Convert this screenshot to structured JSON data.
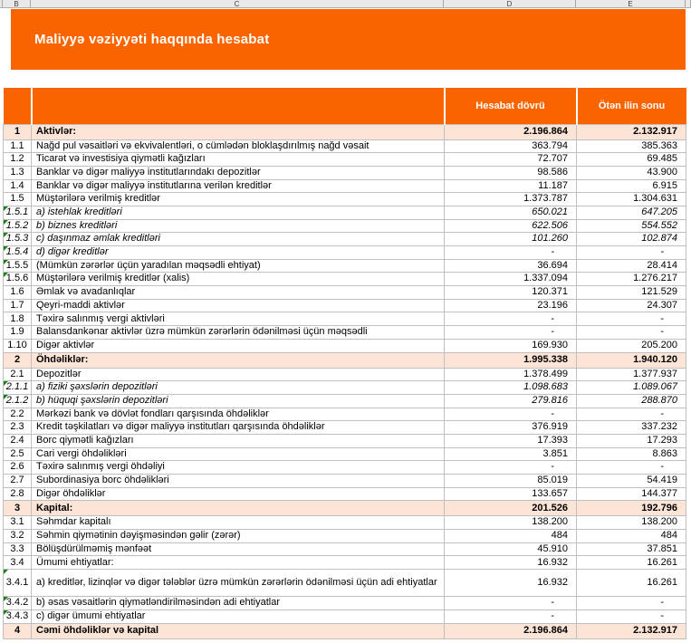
{
  "sheet": {
    "column_letters": [
      "B",
      "C",
      "D",
      "E"
    ]
  },
  "banner": {
    "title": "Maliyyə vəziyyəti haqqında hesabat"
  },
  "colors": {
    "accent_orange": "#fa6400",
    "section_row_bg": "#fce4d6",
    "gridline": "#bfbfbf",
    "error_indicator_green": "#1a801a"
  },
  "table": {
    "header": {
      "col_current": "Hesabat dövrü",
      "col_previous": "Ötən ilin sonu"
    },
    "rows": [
      {
        "num": "1",
        "label": "Aktivlər:",
        "v1": "2.196.864",
        "v2": "2.132.917",
        "type": "section"
      },
      {
        "num": "1.1",
        "label": "Nağd pul vəsaitləri və ekvivalentləri, o cümlədən bloklaşdırılmış nağd vəsait",
        "v1": "363.794",
        "v2": "385.363"
      },
      {
        "num": "1.2",
        "label": "Ticarət və investisiya qiymətli kağızları",
        "v1": "72.707",
        "v2": "69.485"
      },
      {
        "num": "1.3",
        "label": "Banklar və digər maliyyə institutlarındakı depozitlər",
        "v1": "98.586",
        "v2": "43.900"
      },
      {
        "num": "1.4",
        "label": "Banklar və digər maliyyə institutlarına verilən kreditlər",
        "v1": "11.187",
        "v2": "6.915"
      },
      {
        "num": "1.5",
        "label": "Müştərilərə verilmiş kreditlər",
        "v1": "1.373.787",
        "v2": "1.304.631"
      },
      {
        "num": "1.5.1",
        "label": "a) istehlak kreditləri",
        "v1": "650.021",
        "v2": "647.205",
        "italic": true,
        "marker": true
      },
      {
        "num": "1.5.2",
        "label": "b) biznes kreditləri",
        "v1": "622.506",
        "v2": "554.552",
        "italic": true,
        "marker": true
      },
      {
        "num": "1.5.3",
        "label": "c) daşınmaz əmlak kreditləri",
        "v1": "101.260",
        "v2": "102.874",
        "italic": true,
        "marker": true
      },
      {
        "num": "1.5.4",
        "label": "d) digər kreditlər",
        "v1": "-",
        "v2": "-",
        "italic": true,
        "marker": true
      },
      {
        "num": "1.5.5",
        "label": "(Mümkün zərərlər üçün yaradılan məqsədli ehtiyat)",
        "v1": "36.694",
        "v2": "28.414",
        "marker": true
      },
      {
        "num": "1.5.6",
        "label": "Müştərilərə verilmiş kreditlər (xalis)",
        "v1": "1.337.094",
        "v2": "1.276.217",
        "marker": true
      },
      {
        "num": "1.6",
        "label": "Əmlak və avadanlıqlar",
        "v1": "120.371",
        "v2": "121.529"
      },
      {
        "num": "1.7",
        "label": "Qeyri-maddi aktivlər",
        "v1": "23.196",
        "v2": "24.307"
      },
      {
        "num": "1.8",
        "label": "Təxirə salınmış vergi aktivləri",
        "v1": "-",
        "v2": "-"
      },
      {
        "num": "1.9",
        "label": "Balansdankənar aktivlər üzrə mümkün zərərlərin ödənilməsi üçün məqsədli",
        "v1": "-",
        "v2": "-"
      },
      {
        "num": "1.10",
        "label": "Digər aktivlər",
        "v1": "169.930",
        "v2": "205.200"
      },
      {
        "num": "2",
        "label": "Öhdəliklər:",
        "v1": "1.995.338",
        "v2": "1.940.120",
        "type": "section"
      },
      {
        "num": "2.1",
        "label": "Depozitlər",
        "v1": "1.378.499",
        "v2": "1.377.937"
      },
      {
        "num": "2.1.1",
        "label": "a) fiziki şəxslərin depozitləri",
        "v1": "1.098.683",
        "v2": "1.089.067",
        "italic": true,
        "marker": true
      },
      {
        "num": "2.1.2",
        "label": "b) hüquqi şəxslərin depozitləri",
        "v1": "279.816",
        "v2": "288.870",
        "italic": true,
        "marker": true
      },
      {
        "num": "2.2",
        "label": "Mərkəzi bank və dövlət fondları qarşısında öhdəliklər",
        "v1": "-",
        "v2": "-"
      },
      {
        "num": "2.3",
        "label": "Kredit təşkilatları və digər maliyyə institutları qarşısında öhdəliklər",
        "v1": "376.919",
        "v2": "337.232"
      },
      {
        "num": "2.4",
        "label": "Borc qiymətli kağızları",
        "v1": "17.393",
        "v2": "17.293"
      },
      {
        "num": "2.5",
        "label": "Cari vergi öhdəlikləri",
        "v1": "3.851",
        "v2": "8.863"
      },
      {
        "num": "2.6",
        "label": "Təxirə salınmış vergi öhdəliyi",
        "v1": "-",
        "v2": "-"
      },
      {
        "num": "2.7",
        "label": "Subordinasiya borc öhdəlikləri",
        "v1": "85.019",
        "v2": "54.419"
      },
      {
        "num": "2.8",
        "label": "Digər öhdəliklər",
        "v1": "133.657",
        "v2": "144.377"
      },
      {
        "num": "3",
        "label": "Kapital:",
        "v1": "201.526",
        "v2": "192.796",
        "type": "section"
      },
      {
        "num": "3.1",
        "label": "Səhmdar kapitalı",
        "v1": "138.200",
        "v2": "138.200"
      },
      {
        "num": "3.2",
        "label": "Səhmin qiymətinin dəyişməsindən gəlir (zərər)",
        "v1": "484",
        "v2": "484"
      },
      {
        "num": "3.3",
        "label": "Bölüşdürülməmiş mənfəət",
        "v1": "45.910",
        "v2": "37.851"
      },
      {
        "num": "3.4",
        "label": "Ümumi ehtiyatlar:",
        "v1": "16.932",
        "v2": "16.261"
      },
      {
        "num": "3.4.1",
        "label": "a) kreditlər, lizinqlər və digər tələblər üzrə mümkün zərərlərin ödənilməsi üçün adi ehtiyatlar",
        "v1": "16.932",
        "v2": "16.261",
        "marker": true,
        "tall": true
      },
      {
        "num": "3.4.2",
        "label": "b) əsas vəsaitlərin qiymətləndirilməsindən adi ehtiyatlar",
        "v1": "-",
        "v2": "-",
        "marker": true
      },
      {
        "num": "3.4.3",
        "label": "c) digər ümumi ehtiyatlar",
        "v1": "-",
        "v2": "-",
        "marker": true
      },
      {
        "num": "4",
        "label": "Cəmi öhdəliklər və kapital",
        "v1": "2.196.864",
        "v2": "2.132.917",
        "type": "section"
      }
    ]
  }
}
